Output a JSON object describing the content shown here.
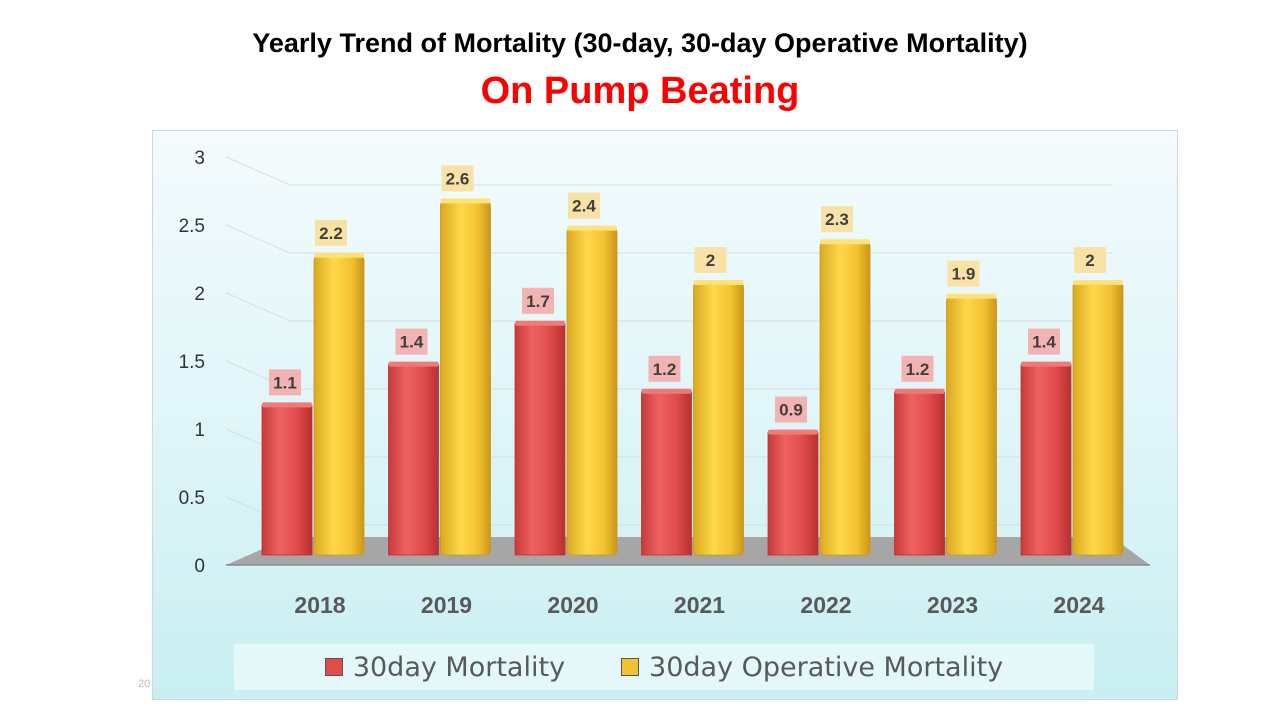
{
  "chart_data": {
    "type": "bar",
    "title": "Yearly Trend of Mortality (30-day,  30-day Operative Mortality)",
    "subtitle": "On Pump Beating",
    "categories": [
      "2018",
      "2019",
      "2020",
      "2021",
      "2022",
      "2023",
      "2024"
    ],
    "series": [
      {
        "name": "30day Mortality",
        "values": [
          1.1,
          1.4,
          1.7,
          1.2,
          0.9,
          1.2,
          1.4
        ],
        "color": "#e04b4b"
      },
      {
        "name": "30day Operative Mortality",
        "values": [
          2.2,
          2.6,
          2.4,
          2,
          2.3,
          1.9,
          2
        ],
        "color": "#f2c230"
      }
    ],
    "ylim": [
      0,
      3
    ],
    "yticks": [
      "0",
      "0.5",
      "1",
      "1.5",
      "2",
      "2.5",
      "3"
    ],
    "xlabel": "",
    "ylabel": "",
    "legend": "bottom",
    "grid": true
  },
  "footer": {
    "corner_text": "20"
  }
}
